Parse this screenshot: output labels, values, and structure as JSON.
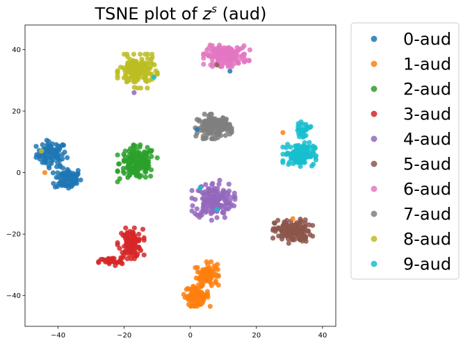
{
  "chart_data": {
    "type": "scatter",
    "title_prefix": "TSNE plot of ",
    "title_var": "z",
    "title_sup": "s",
    "title_suffix": " (aud)",
    "xlabel": "",
    "ylabel": "",
    "xlim": [
      -50,
      44
    ],
    "ylim": [
      -50,
      48
    ],
    "x_ticks": [
      -40,
      -20,
      0,
      20,
      40
    ],
    "y_ticks": [
      -40,
      -20,
      0,
      20,
      40
    ],
    "grid": false,
    "legend_placement": "outside-right",
    "series": [
      {
        "name": "0-aud",
        "color": "#1f77b4",
        "clusters": [
          {
            "cx": -42,
            "cy": 6,
            "rx": 5,
            "ry": 4.5,
            "n": 80
          },
          {
            "cx": -37,
            "cy": -2,
            "rx": 4.5,
            "ry": 4,
            "n": 80
          }
        ]
      },
      {
        "name": "1-aud",
        "color": "#ff7f0e",
        "clusters": [
          {
            "cx": 5,
            "cy": -33,
            "rx": 3.5,
            "ry": 4,
            "n": 80
          },
          {
            "cx": 2,
            "cy": -40,
            "rx": 4,
            "ry": 3.5,
            "n": 80
          }
        ]
      },
      {
        "name": "2-aud",
        "color": "#2ca02c",
        "clusters": [
          {
            "cx": -16,
            "cy": 3,
            "rx": 6,
            "ry": 6,
            "n": 160
          }
        ]
      },
      {
        "name": "3-aud",
        "color": "#d62728",
        "clusters": [
          {
            "cx": -18,
            "cy": -23,
            "rx": 4,
            "ry": 5,
            "n": 100
          },
          {
            "cx": -24,
            "cy": -29,
            "rx": 4,
            "ry": 1.5,
            "n": 40
          }
        ]
      },
      {
        "name": "4-aud",
        "color": "#9467bd",
        "clusters": [
          {
            "cx": 7,
            "cy": -9,
            "rx": 6.5,
            "ry": 6.5,
            "n": 160
          }
        ]
      },
      {
        "name": "5-aud",
        "color": "#8c564b",
        "clusters": [
          {
            "cx": 31,
            "cy": -19,
            "rx": 6,
            "ry": 4,
            "n": 140
          }
        ]
      },
      {
        "name": "6-aud",
        "color": "#e377c2",
        "clusters": [
          {
            "cx": 11,
            "cy": 38,
            "rx": 7,
            "ry": 3.5,
            "n": 160
          }
        ]
      },
      {
        "name": "7-aud",
        "color": "#7f7f7f",
        "clusters": [
          {
            "cx": 7,
            "cy": 15,
            "rx": 5.5,
            "ry": 4,
            "n": 140
          }
        ]
      },
      {
        "name": "8-aud",
        "color": "#bcbd22",
        "clusters": [
          {
            "cx": -16,
            "cy": 33,
            "rx": 6,
            "ry": 5.5,
            "n": 160
          }
        ]
      },
      {
        "name": "9-aud",
        "color": "#17becf",
        "clusters": [
          {
            "cx": 34,
            "cy": 14,
            "rx": 2.5,
            "ry": 2.5,
            "n": 30
          },
          {
            "cx": 33,
            "cy": 6,
            "rx": 5,
            "ry": 4,
            "n": 120
          }
        ]
      }
    ],
    "outliers": [
      {
        "series": "9-aud",
        "x": -11,
        "y": 31
      },
      {
        "series": "4-aud",
        "x": -17,
        "y": 26
      },
      {
        "series": "1-aud",
        "x": 28,
        "y": 13
      },
      {
        "series": "8-aud",
        "x": -45,
        "y": 7
      },
      {
        "series": "1-aud",
        "x": -44,
        "y": 0
      },
      {
        "series": "9-aud",
        "x": 3,
        "y": -5
      },
      {
        "series": "9-aud",
        "x": 8,
        "y": -12
      },
      {
        "series": "0-aud",
        "x": 2,
        "y": 14
      },
      {
        "series": "5-aud",
        "x": 8,
        "y": 35
      },
      {
        "series": "0-aud",
        "x": 12,
        "y": 33
      },
      {
        "series": "1-aud",
        "x": 31,
        "y": -15
      }
    ]
  }
}
